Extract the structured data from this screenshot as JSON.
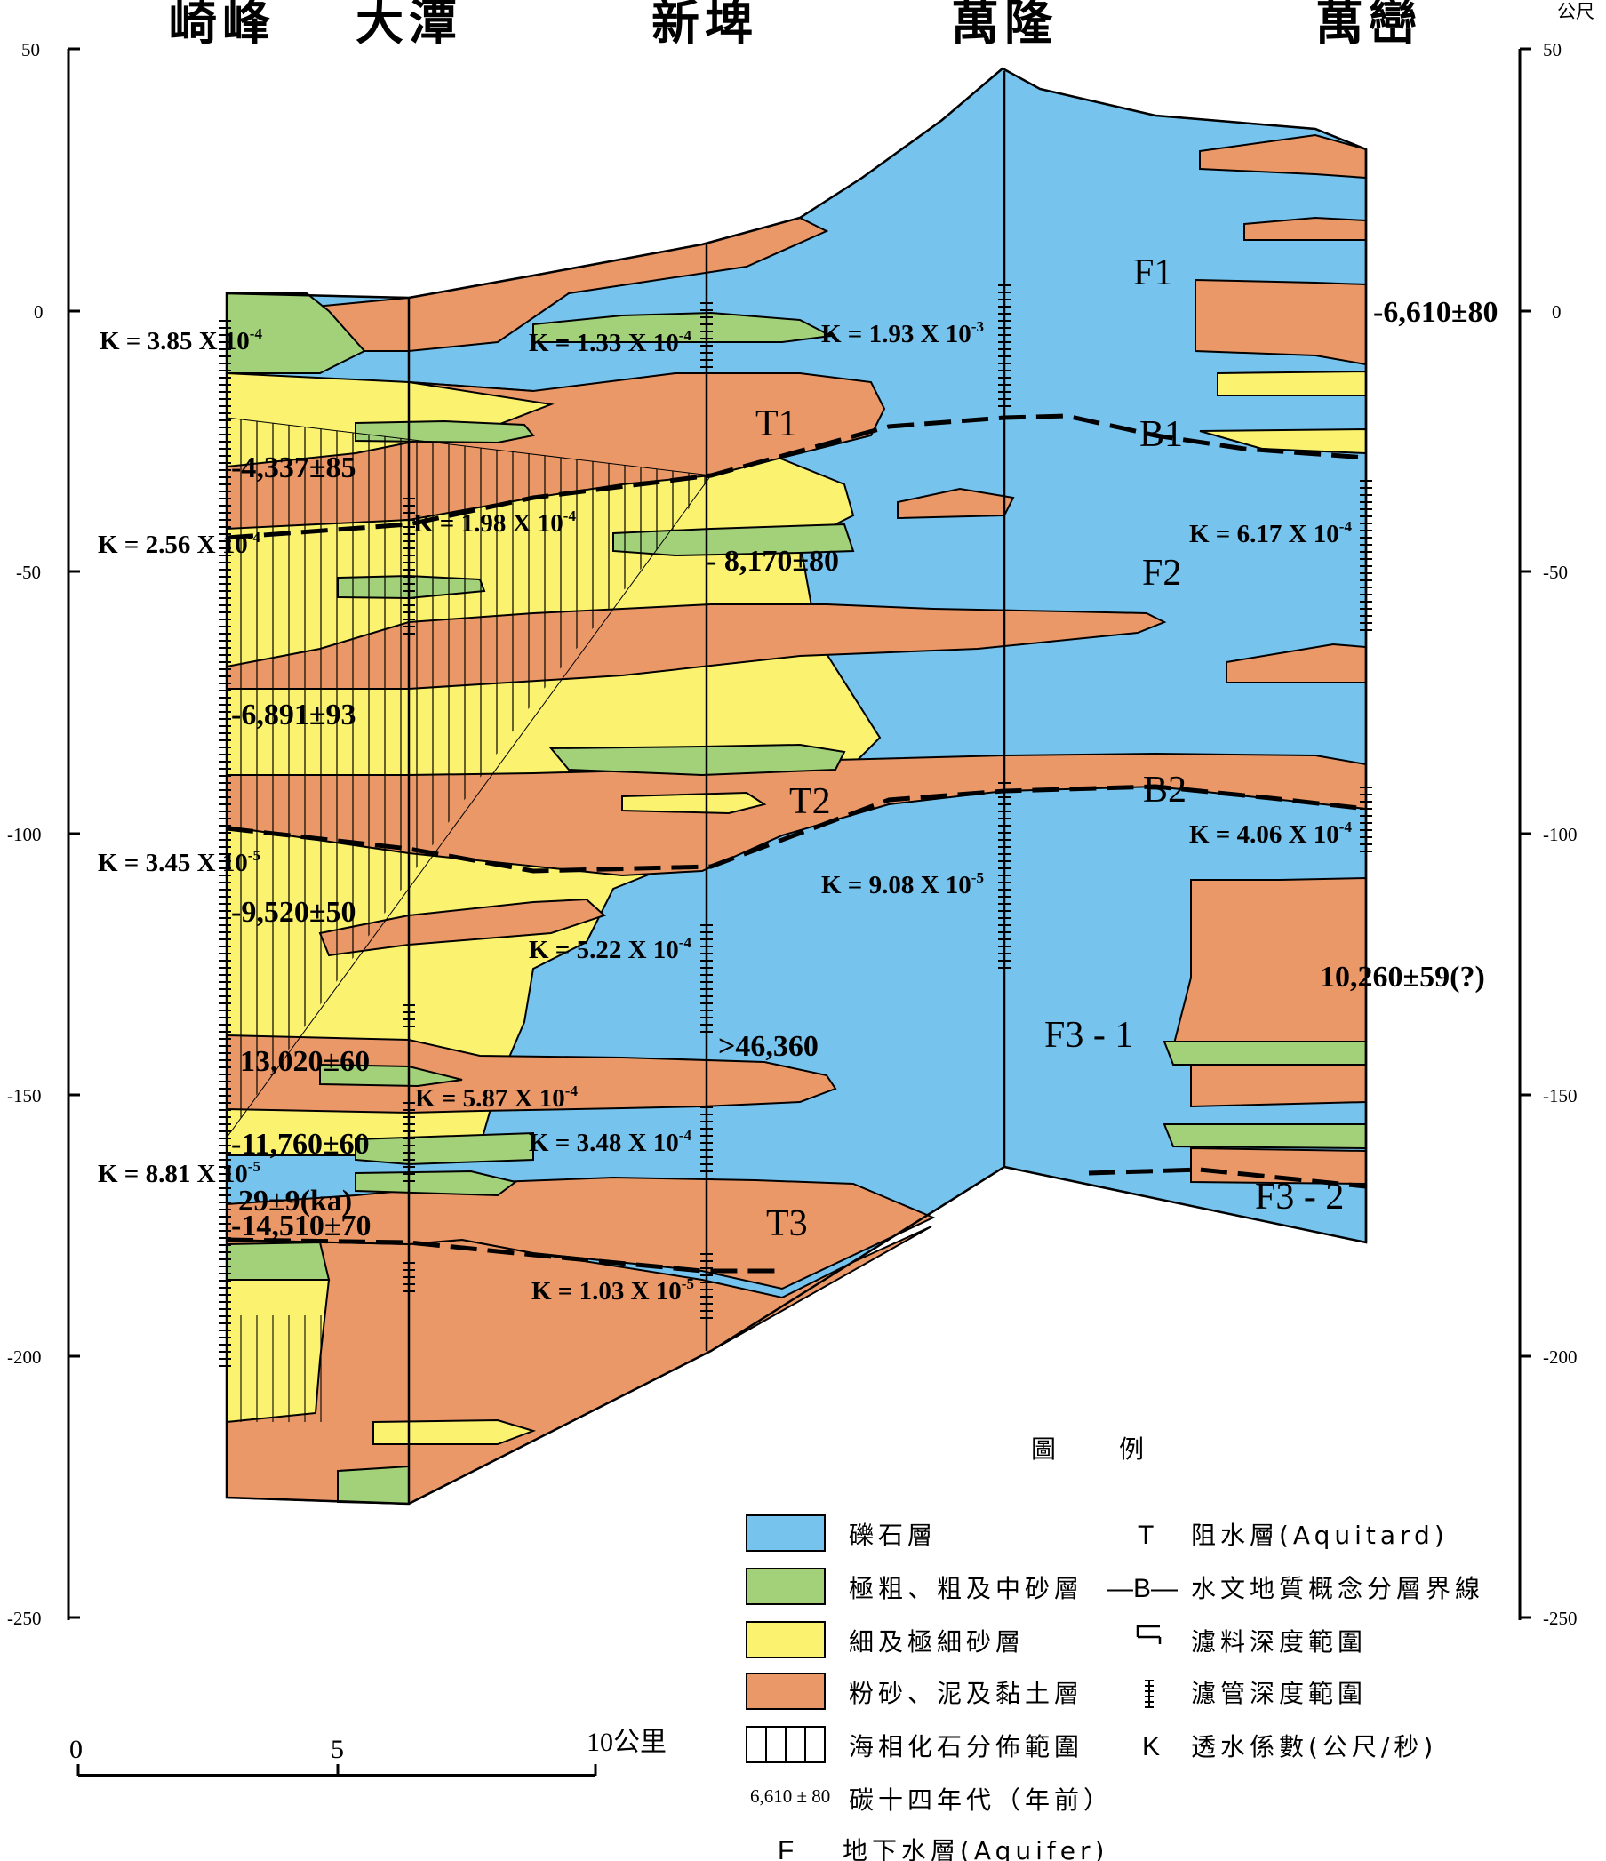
{
  "wells": [
    "崎峰",
    "大潭",
    "新埤",
    "萬隆",
    "萬巒"
  ],
  "unit_label": "公尺",
  "left_axis": [
    "50",
    "0",
    "-50",
    "-100",
    "-150",
    "-200",
    "-250"
  ],
  "right_axis": [
    "50",
    "0",
    "-50",
    "-100",
    "-150",
    "-200",
    "-250"
  ],
  "units": {
    "F1": "F1",
    "F2": "F2",
    "F31": "F3 - 1",
    "F32": "F3 - 2",
    "T1": "T1",
    "T2": "T2",
    "T3": "T3",
    "B1": "B1",
    "B2": "B2"
  },
  "k_values": {
    "k1": "K = 3.85 X 10",
    "k1e": "-4",
    "k2": "K = 2.56 X 10",
    "k2e": "-4",
    "k3": "K = 3.45 X 10",
    "k3e": "-5",
    "k4": "K = 8.81 X 10",
    "k4e": "-5",
    "k5": "K = 1.98 X 10",
    "k5e": "-4",
    "k6": "K = 5.87 X 10",
    "k6e": "-4",
    "k7": "K = 1.33 X 10",
    "k7e": "-4",
    "k8": "K = 5.22 X 10",
    "k8e": "-4",
    "k9": "K = 3.48 X 10",
    "k9e": "-4",
    "k10": "K = 1.03 X 10",
    "k10e": "-5",
    "k11": "K = 1.93 X 10",
    "k11e": "-3",
    "k12": "K = 9.08 X 10",
    "k12e": "-5",
    "k13": "K = 6.17 X 10",
    "k13e": "-4",
    "k14": "K = 4.06 X 10",
    "k14e": "-4"
  },
  "dates": {
    "d1": "-4,337±85",
    "d2": "-6,891±93",
    "d3": "-9,520±50",
    "d4": "13,020±60",
    "d5": "-11,760±60",
    "d6": "29±9(ka)",
    "d7": "-14,510±70",
    "d8": "- 8,170±80",
    "d9": ">46,360",
    "d10": "-6,610±80",
    "d11": "10,260±59(?)"
  },
  "legend": {
    "title": "圖　　例",
    "gravel": "礫石層",
    "coarse_sand": "極粗、粗及中砂層",
    "fine_sand": "細及極細砂層",
    "silt_clay": "粉砂、泥及黏土層",
    "marine_fossil": "海相化石分佈範圍",
    "c14_sample": "6,610 ± 80",
    "c14": "碳十四年代（年前）",
    "aquifer_sym": "F",
    "aquifer": "地下水層(Aquifer)",
    "aquitard_sym": "T",
    "aquitard": "阻水層(Aquitard)",
    "boundary_sym": "—B—",
    "boundary": "水文地質概念分層界線",
    "filter_material": "濾料深度範圍",
    "screen": "濾管深度範圍",
    "k_sym": "K",
    "k_desc": "透水係數(公尺/秒)"
  },
  "scale_bar": {
    "zero": "0",
    "mid": "5",
    "end": "10公里"
  },
  "colors": {
    "gravel": "#76c3ee",
    "coarse_sand": "#a3d17a",
    "fine_sand": "#fbf36f",
    "silt_clay": "#eb9868"
  }
}
